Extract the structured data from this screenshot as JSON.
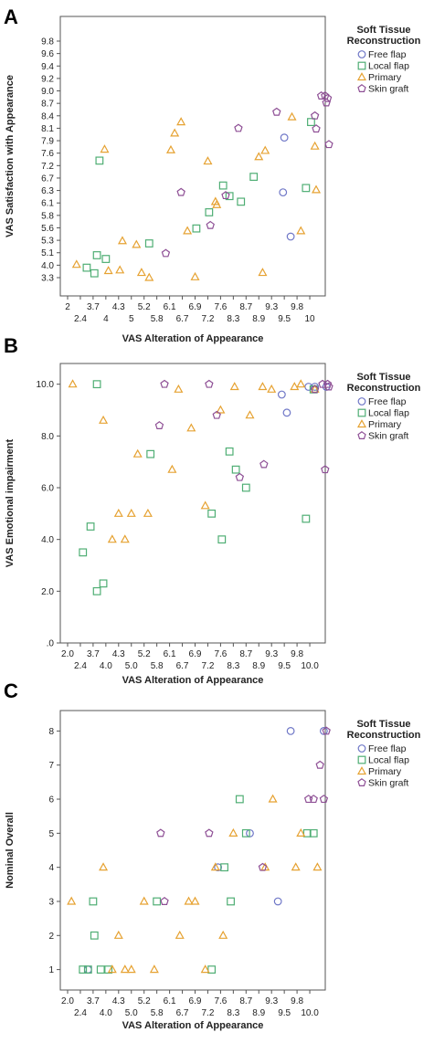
{
  "colors": {
    "Free flap": "#6f77c7",
    "Local flap": "#4fae74",
    "Primary": "#e6a232",
    "Skin graft": "#8e4f95"
  },
  "shapes": {
    "Free flap": "circle",
    "Local flap": "square",
    "Primary": "triangle",
    "Skin graft": "pentagon"
  },
  "chart_data": [
    {
      "panel": "A",
      "type": "scatter",
      "xlabel": "VAS Alteration of Appearance",
      "ylabel": "VAS Satisfaction with Appearance",
      "x_ticks_top": [
        "2",
        "3.7",
        "4.3",
        "5.2",
        "6.1",
        "6.9",
        "7.6",
        "8.7",
        "9.3",
        "9.8"
      ],
      "x_ticks_bottom": [
        "2.4",
        "4",
        "5",
        "5.8",
        "6.7",
        "7.2",
        "8.3",
        "8.9",
        "9.5",
        "10"
      ],
      "y_ticks": [
        "9.8",
        "9.6",
        "9.4",
        "9.2",
        "9.0",
        "8.7",
        "8.4",
        "8.1",
        "7.9",
        "7.6",
        "7.2",
        "6.7",
        "6.3",
        "6.1",
        "5.8",
        "5.6",
        "5.3",
        "5.1",
        "4.0",
        "3.3"
      ],
      "legend": {
        "title": [
          "Soft Tissue",
          "Reconstruction"
        ],
        "entries": [
          "Free flap",
          "Local flap",
          "Primary",
          "Skin graft"
        ]
      },
      "series": [
        {
          "name": "Free flap",
          "points": [
            [
              16.9,
              6.85
            ],
            [
              17.5,
              3.3
            ],
            [
              17.0,
              11.25
            ]
          ]
        },
        {
          "name": "Local flap",
          "points": [
            [
              1.5,
              0.8
            ],
            [
              2.1,
              0.35
            ],
            [
              2.3,
              1.8
            ],
            [
              3.0,
              1.5
            ],
            [
              2.5,
              9.4
            ],
            [
              6.4,
              2.75
            ],
            [
              10.1,
              3.95
            ],
            [
              11.1,
              5.25
            ],
            [
              12.2,
              7.4
            ],
            [
              12.7,
              6.55
            ],
            [
              13.6,
              6.1
            ],
            [
              14.6,
              8.1
            ],
            [
              18.7,
              7.2
            ],
            [
              19.1,
              12.5
            ]
          ]
        },
        {
          "name": "Primary",
          "points": [
            [
              0.7,
              1.05
            ],
            [
              2.9,
              10.3
            ],
            [
              3.2,
              0.55
            ],
            [
              4.1,
              0.6
            ],
            [
              4.3,
              2.95
            ],
            [
              5.4,
              2.65
            ],
            [
              5.8,
              0.4
            ],
            [
              6.4,
              0.0
            ],
            [
              8.1,
              10.25
            ],
            [
              8.4,
              11.6
            ],
            [
              8.9,
              12.5
            ],
            [
              9.4,
              3.75
            ],
            [
              10.0,
              0.05
            ],
            [
              11.0,
              9.35
            ],
            [
              11.6,
              6.1
            ],
            [
              11.7,
              5.85
            ],
            [
              15.0,
              9.7
            ],
            [
              15.3,
              0.4
            ],
            [
              15.5,
              10.2
            ],
            [
              17.6,
              12.9
            ],
            [
              18.3,
              3.75
            ],
            [
              19.5,
              7.05
            ],
            [
              19.4,
              10.55
            ]
          ]
        },
        {
          "name": "Skin graft",
          "points": [
            [
              7.7,
              1.95
            ],
            [
              8.9,
              6.85
            ],
            [
              11.2,
              4.2
            ],
            [
              12.4,
              6.6
            ],
            [
              13.4,
              12.0
            ],
            [
              16.4,
              13.3
            ],
            [
              19.5,
              11.95
            ],
            [
              19.4,
              13.0
            ],
            [
              19.9,
              14.6
            ],
            [
              20.2,
              14.6
            ],
            [
              20.3,
              14.05
            ],
            [
              20.4,
              14.4
            ],
            [
              20.5,
              10.7
            ]
          ]
        }
      ]
    },
    {
      "panel": "B",
      "type": "scatter",
      "xlabel": "VAS Alteration of Appearance",
      "ylabel": "VAS Emotional impairment",
      "x_ticks_top": [
        "2.0",
        "3.7",
        "4.3",
        "5.2",
        "6.1",
        "6.9",
        "7.6",
        "8.7",
        "9.3",
        "9.8"
      ],
      "x_ticks_bottom": [
        "2.4",
        "4.0",
        "5.0",
        "5.8",
        "6.7",
        "7.2",
        "8.3",
        "8.9",
        "9.5",
        "10.0"
      ],
      "y_ticks": [
        ".0",
        "2.0",
        "4.0",
        "6.0",
        "8.0",
        "10.0"
      ],
      "ylim": [
        0,
        10.8
      ],
      "legend": {
        "title": [
          "Soft Tissue",
          "Reconstruction"
        ],
        "entries": [
          "Free flap",
          "Local flap",
          "Primary",
          "Skin graft"
        ]
      },
      "series": [
        {
          "name": "Free flap",
          "points": [
            [
              16.8,
              9.6
            ],
            [
              17.2,
              8.9
            ],
            [
              18.9,
              9.9
            ],
            [
              19.4,
              9.9
            ],
            [
              20.3,
              9.9
            ]
          ]
        },
        {
          "name": "Local flap",
          "points": [
            [
              1.2,
              3.5
            ],
            [
              1.8,
              4.5
            ],
            [
              2.3,
              10.0
            ],
            [
              2.3,
              2.0
            ],
            [
              2.8,
              2.3
            ],
            [
              6.5,
              7.3
            ],
            [
              11.3,
              5.0
            ],
            [
              12.1,
              4.0
            ],
            [
              12.7,
              7.4
            ],
            [
              13.2,
              6.7
            ],
            [
              14.0,
              6.0
            ],
            [
              18.7,
              4.8
            ],
            [
              19.3,
              9.8
            ]
          ]
        },
        {
          "name": "Primary",
          "points": [
            [
              0.4,
              10.0
            ],
            [
              2.8,
              8.6
            ],
            [
              3.5,
              4.0
            ],
            [
              4.0,
              5.0
            ],
            [
              4.5,
              4.0
            ],
            [
              5.0,
              5.0
            ],
            [
              5.5,
              7.3
            ],
            [
              6.3,
              5.0
            ],
            [
              8.2,
              6.7
            ],
            [
              8.7,
              9.8
            ],
            [
              9.7,
              8.3
            ],
            [
              10.8,
              5.3
            ],
            [
              12.0,
              9.0
            ],
            [
              13.1,
              9.9
            ],
            [
              14.3,
              8.8
            ],
            [
              15.3,
              9.9
            ],
            [
              16.0,
              9.8
            ],
            [
              17.8,
              9.9
            ],
            [
              18.3,
              10.0
            ],
            [
              19.4,
              9.8
            ]
          ]
        },
        {
          "name": "Skin graft",
          "points": [
            [
              7.2,
              8.4
            ],
            [
              7.6,
              10.0
            ],
            [
              11.1,
              10.0
            ],
            [
              11.7,
              8.8
            ],
            [
              13.5,
              6.4
            ],
            [
              15.4,
              6.9
            ],
            [
              19.4,
              9.8
            ],
            [
              20.0,
              10.0
            ],
            [
              20.2,
              6.7
            ],
            [
              20.4,
              10.0
            ],
            [
              20.5,
              9.9
            ]
          ]
        }
      ]
    },
    {
      "panel": "C",
      "type": "scatter",
      "xlabel": "VAS Alteration of Appearance",
      "ylabel": "Nominal Overall",
      "x_ticks_top": [
        "2.0",
        "3.7",
        "4.3",
        "5.2",
        "6.1",
        "6.9",
        "7.6",
        "8.7",
        "9.3",
        "9.8"
      ],
      "x_ticks_bottom": [
        "2.4",
        "4.0",
        "5.0",
        "5.8",
        "6.7",
        "7.2",
        "8.3",
        "8.9",
        "9.5",
        "10.0"
      ],
      "y_ticks": [
        "1",
        "2",
        "3",
        "4",
        "5",
        "6",
        "7",
        "8"
      ],
      "ylim": [
        0.4,
        8.6
      ],
      "legend": {
        "title": [
          "Soft Tissue",
          "Reconstruction"
        ],
        "entries": [
          "Free flap",
          "Local flap",
          "Primary",
          "Skin graft"
        ]
      },
      "series": [
        {
          "name": "Free flap",
          "points": [
            [
              1.6,
              1.0
            ],
            [
              11.8,
              4.0
            ],
            [
              14.3,
              5.0
            ],
            [
              16.5,
              3.0
            ],
            [
              17.5,
              8.0
            ],
            [
              20.1,
              8.0
            ]
          ]
        },
        {
          "name": "Local flap",
          "points": [
            [
              1.2,
              1.0
            ],
            [
              1.6,
              1.0
            ],
            [
              2.0,
              3.0
            ],
            [
              2.1,
              2.0
            ],
            [
              2.6,
              1.0
            ],
            [
              3.2,
              1.0
            ],
            [
              7.0,
              3.0
            ],
            [
              11.3,
              1.0
            ],
            [
              12.3,
              4.0
            ],
            [
              12.8,
              3.0
            ],
            [
              13.5,
              6.0
            ],
            [
              14.0,
              5.0
            ],
            [
              18.8,
              5.0
            ],
            [
              19.3,
              5.0
            ]
          ]
        },
        {
          "name": "Primary",
          "points": [
            [
              0.3,
              3.0
            ],
            [
              2.8,
              4.0
            ],
            [
              3.5,
              1.0
            ],
            [
              4.0,
              2.0
            ],
            [
              4.5,
              1.0
            ],
            [
              5.0,
              1.0
            ],
            [
              6.0,
              3.0
            ],
            [
              6.8,
              1.0
            ],
            [
              8.8,
              2.0
            ],
            [
              9.5,
              3.0
            ],
            [
              10.0,
              3.0
            ],
            [
              10.8,
              1.0
            ],
            [
              11.6,
              4.0
            ],
            [
              12.2,
              2.0
            ],
            [
              13.0,
              5.0
            ],
            [
              15.5,
              4.0
            ],
            [
              16.1,
              6.0
            ],
            [
              17.9,
              4.0
            ],
            [
              18.3,
              5.0
            ],
            [
              19.6,
              4.0
            ]
          ]
        },
        {
          "name": "Skin graft",
          "points": [
            [
              7.3,
              5.0
            ],
            [
              7.6,
              3.0
            ],
            [
              11.1,
              5.0
            ],
            [
              15.3,
              4.0
            ],
            [
              18.9,
              6.0
            ],
            [
              19.3,
              6.0
            ],
            [
              19.8,
              7.0
            ],
            [
              20.1,
              6.0
            ],
            [
              20.3,
              8.0
            ]
          ]
        }
      ]
    }
  ]
}
